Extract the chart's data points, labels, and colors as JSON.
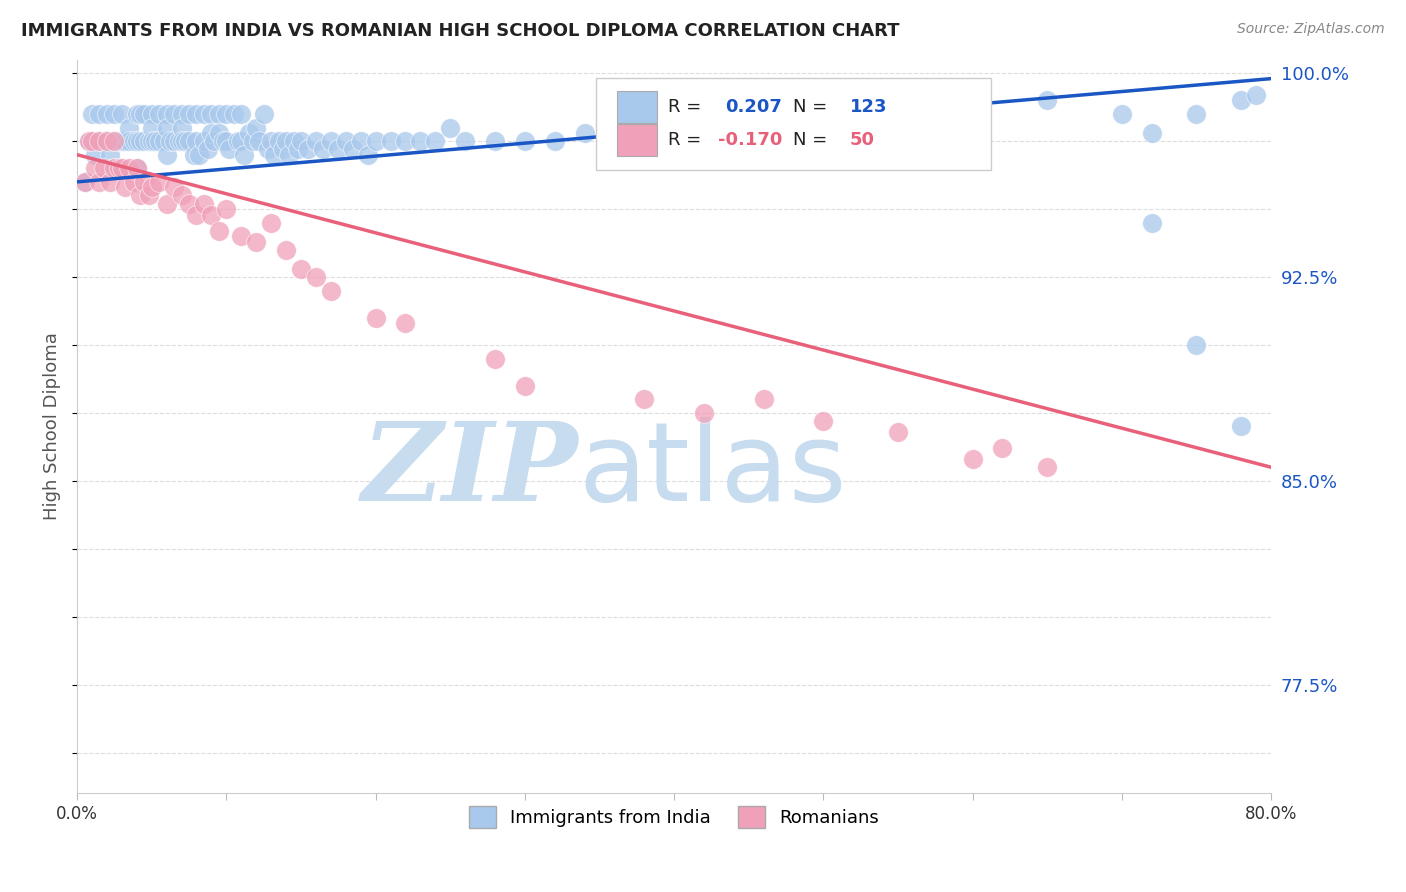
{
  "title": "IMMIGRANTS FROM INDIA VS ROMANIAN HIGH SCHOOL DIPLOMA CORRELATION CHART",
  "source": "Source: ZipAtlas.com",
  "ylabel": "High School Diploma",
  "xlim": [
    0.0,
    0.8
  ],
  "ylim": [
    0.735,
    1.005
  ],
  "watermark_zip": "ZIP",
  "watermark_atlas": "atlas",
  "legend_india_R": "0.207",
  "legend_india_N": "123",
  "legend_romanian_R": "-0.170",
  "legend_romanian_N": "50",
  "color_india": "#A8C8EC",
  "color_romanian": "#F0A0B8",
  "color_line_india": "#1A56C4",
  "color_line_romanian": "#E8607A",
  "india_scatter_x": [
    0.005,
    0.008,
    0.01,
    0.012,
    0.015,
    0.015,
    0.018,
    0.02,
    0.02,
    0.022,
    0.025,
    0.025,
    0.025,
    0.028,
    0.03,
    0.03,
    0.03,
    0.032,
    0.035,
    0.035,
    0.038,
    0.04,
    0.04,
    0.04,
    0.042,
    0.042,
    0.045,
    0.045,
    0.048,
    0.05,
    0.05,
    0.05,
    0.052,
    0.055,
    0.055,
    0.058,
    0.06,
    0.06,
    0.06,
    0.062,
    0.065,
    0.065,
    0.068,
    0.07,
    0.07,
    0.07,
    0.072,
    0.075,
    0.075,
    0.078,
    0.08,
    0.08,
    0.082,
    0.085,
    0.085,
    0.088,
    0.09,
    0.09,
    0.092,
    0.095,
    0.095,
    0.098,
    0.1,
    0.1,
    0.102,
    0.105,
    0.108,
    0.11,
    0.11,
    0.112,
    0.115,
    0.118,
    0.12,
    0.122,
    0.125,
    0.128,
    0.13,
    0.132,
    0.135,
    0.138,
    0.14,
    0.142,
    0.145,
    0.148,
    0.15,
    0.155,
    0.16,
    0.165,
    0.17,
    0.175,
    0.18,
    0.185,
    0.19,
    0.195,
    0.2,
    0.21,
    0.22,
    0.23,
    0.24,
    0.25,
    0.26,
    0.28,
    0.3,
    0.32,
    0.34,
    0.36,
    0.38,
    0.4,
    0.42,
    0.44,
    0.46,
    0.5,
    0.55,
    0.6,
    0.65,
    0.7,
    0.72,
    0.75,
    0.78,
    0.79,
    0.72,
    0.75,
    0.78
  ],
  "india_scatter_y": [
    0.96,
    0.975,
    0.985,
    0.97,
    0.985,
    0.975,
    0.975,
    0.985,
    0.975,
    0.97,
    0.985,
    0.975,
    0.965,
    0.975,
    0.985,
    0.975,
    0.965,
    0.975,
    0.98,
    0.975,
    0.975,
    0.985,
    0.975,
    0.965,
    0.985,
    0.975,
    0.985,
    0.975,
    0.975,
    0.985,
    0.98,
    0.975,
    0.975,
    0.985,
    0.975,
    0.975,
    0.985,
    0.98,
    0.97,
    0.975,
    0.985,
    0.975,
    0.975,
    0.985,
    0.98,
    0.975,
    0.975,
    0.985,
    0.975,
    0.97,
    0.985,
    0.975,
    0.97,
    0.985,
    0.975,
    0.972,
    0.985,
    0.978,
    0.975,
    0.985,
    0.978,
    0.975,
    0.985,
    0.975,
    0.972,
    0.985,
    0.975,
    0.985,
    0.975,
    0.97,
    0.978,
    0.975,
    0.98,
    0.975,
    0.985,
    0.972,
    0.975,
    0.97,
    0.975,
    0.972,
    0.975,
    0.97,
    0.975,
    0.972,
    0.975,
    0.972,
    0.975,
    0.972,
    0.975,
    0.972,
    0.975,
    0.972,
    0.975,
    0.97,
    0.975,
    0.975,
    0.975,
    0.975,
    0.975,
    0.98,
    0.975,
    0.975,
    0.975,
    0.975,
    0.978,
    0.978,
    0.978,
    0.98,
    0.98,
    0.98,
    0.978,
    0.985,
    0.985,
    0.985,
    0.99,
    0.985,
    0.978,
    0.985,
    0.99,
    0.992,
    0.945,
    0.9,
    0.87
  ],
  "romanian_scatter_x": [
    0.005,
    0.008,
    0.01,
    0.012,
    0.015,
    0.015,
    0.018,
    0.02,
    0.022,
    0.025,
    0.025,
    0.028,
    0.03,
    0.032,
    0.035,
    0.038,
    0.04,
    0.042,
    0.045,
    0.048,
    0.05,
    0.055,
    0.06,
    0.065,
    0.07,
    0.075,
    0.08,
    0.085,
    0.09,
    0.095,
    0.1,
    0.11,
    0.12,
    0.13,
    0.14,
    0.15,
    0.16,
    0.17,
    0.2,
    0.22,
    0.28,
    0.3,
    0.38,
    0.42,
    0.46,
    0.5,
    0.55,
    0.6,
    0.62,
    0.65
  ],
  "romanian_scatter_y": [
    0.96,
    0.975,
    0.975,
    0.965,
    0.975,
    0.96,
    0.965,
    0.975,
    0.96,
    0.975,
    0.965,
    0.965,
    0.965,
    0.958,
    0.965,
    0.96,
    0.965,
    0.955,
    0.96,
    0.955,
    0.958,
    0.96,
    0.952,
    0.958,
    0.955,
    0.952,
    0.948,
    0.952,
    0.948,
    0.942,
    0.95,
    0.94,
    0.938,
    0.945,
    0.935,
    0.928,
    0.925,
    0.92,
    0.91,
    0.908,
    0.895,
    0.885,
    0.88,
    0.875,
    0.88,
    0.872,
    0.868,
    0.858,
    0.862,
    0.855
  ],
  "india_trend_x": [
    0.0,
    0.8
  ],
  "india_trend_y": [
    0.96,
    0.998
  ],
  "romanian_trend_x": [
    0.0,
    0.8
  ],
  "romanian_trend_y": [
    0.97,
    0.855
  ],
  "background_color": "#FFFFFF",
  "grid_color": "#DDDDDD",
  "title_color": "#222222",
  "axis_right_color": "#1A56C4",
  "watermark_color": "#C8DCF0",
  "y_tick_vals": [
    0.75,
    0.775,
    0.8,
    0.825,
    0.85,
    0.875,
    0.9,
    0.925,
    0.95,
    0.975,
    1.0
  ],
  "y_tick_labels_right": [
    "",
    "77.5%",
    "",
    "",
    "85.0%",
    "",
    "",
    "92.5%",
    "",
    "",
    "100.0%"
  ]
}
